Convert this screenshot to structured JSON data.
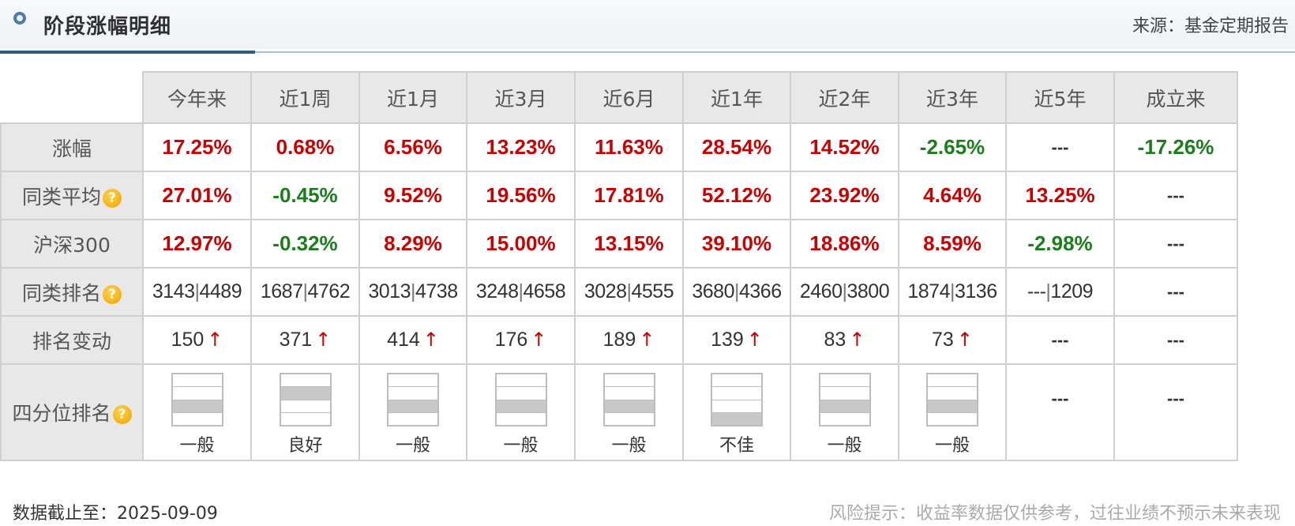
{
  "header": {
    "title": "阶段涨幅明细",
    "source": "来源：基金定期报告"
  },
  "columns": [
    "今年来",
    "近1周",
    "近1月",
    "近3月",
    "近6月",
    "近1年",
    "近2年",
    "近3年",
    "近5年",
    "成立来"
  ],
  "rows": {
    "gain": {
      "label": "涨幅",
      "values": [
        "17.25%",
        "0.68%",
        "6.56%",
        "13.23%",
        "11.63%",
        "28.54%",
        "14.52%",
        "-2.65%",
        "---",
        "-17.26%"
      ],
      "colors": [
        "red",
        "red",
        "red",
        "red",
        "red",
        "red",
        "red",
        "green",
        "",
        "green"
      ]
    },
    "peer_avg": {
      "label": "同类平均",
      "values": [
        "27.01%",
        "-0.45%",
        "9.52%",
        "19.56%",
        "17.81%",
        "52.12%",
        "23.92%",
        "4.64%",
        "13.25%",
        "---"
      ],
      "colors": [
        "red",
        "green",
        "red",
        "red",
        "red",
        "red",
        "red",
        "red",
        "red",
        ""
      ]
    },
    "hs300": {
      "label": "沪深300",
      "values": [
        "12.97%",
        "-0.32%",
        "8.29%",
        "15.00%",
        "13.15%",
        "39.10%",
        "18.86%",
        "8.59%",
        "-2.98%",
        "---"
      ],
      "colors": [
        "red",
        "green",
        "red",
        "red",
        "red",
        "red",
        "red",
        "red",
        "green",
        ""
      ]
    },
    "peer_rank": {
      "label": "同类排名",
      "values": [
        [
          "3143",
          "4489"
        ],
        [
          "1687",
          "4762"
        ],
        [
          "3013",
          "4738"
        ],
        [
          "3248",
          "4658"
        ],
        [
          "3028",
          "4555"
        ],
        [
          "3680",
          "4366"
        ],
        [
          "2460",
          "3800"
        ],
        [
          "1874",
          "3136"
        ],
        [
          "---",
          "1209"
        ],
        "---"
      ]
    },
    "rank_change": {
      "label": "排名变动",
      "values": [
        "150",
        "371",
        "414",
        "176",
        "189",
        "139",
        "83",
        "73",
        "---",
        "---"
      ],
      "arrow": "↑"
    },
    "quartile": {
      "label": "四分位排名",
      "values": [
        {
          "label": "一般",
          "level": 3
        },
        {
          "label": "良好",
          "level": 2
        },
        {
          "label": "一般",
          "level": 3
        },
        {
          "label": "一般",
          "level": 3
        },
        {
          "label": "一般",
          "level": 3
        },
        {
          "label": "不佳",
          "level": 4
        },
        {
          "label": "一般",
          "level": 3
        },
        {
          "label": "一般",
          "level": 3
        },
        "---",
        "---"
      ]
    }
  },
  "icons": {
    "help": "?"
  },
  "colors": {
    "positive": "#cc0000",
    "negative": "#1a7f1a"
  },
  "footer": {
    "date": "数据截止至：2025-09-09",
    "risk": "风险提示：收益率数据仅供参考，过往业绩不预示未来表现"
  }
}
